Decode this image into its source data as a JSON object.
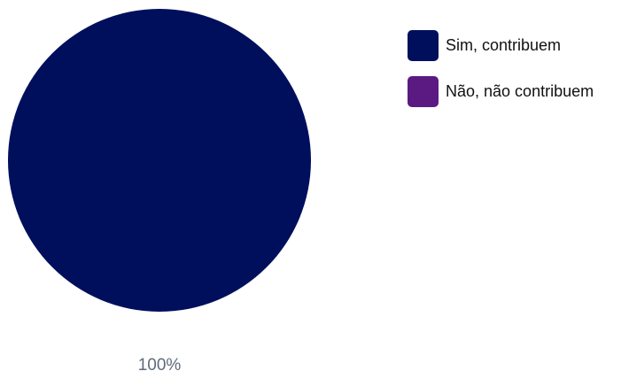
{
  "chart_data": {
    "type": "pie",
    "categories": [
      "Sim, contribuem",
      "Não, não contribuem"
    ],
    "values": [
      100,
      0
    ],
    "colors": [
      "#000f5c",
      "#5b1a82"
    ],
    "data_labels": [
      "100%"
    ],
    "legend_placement": "right"
  }
}
